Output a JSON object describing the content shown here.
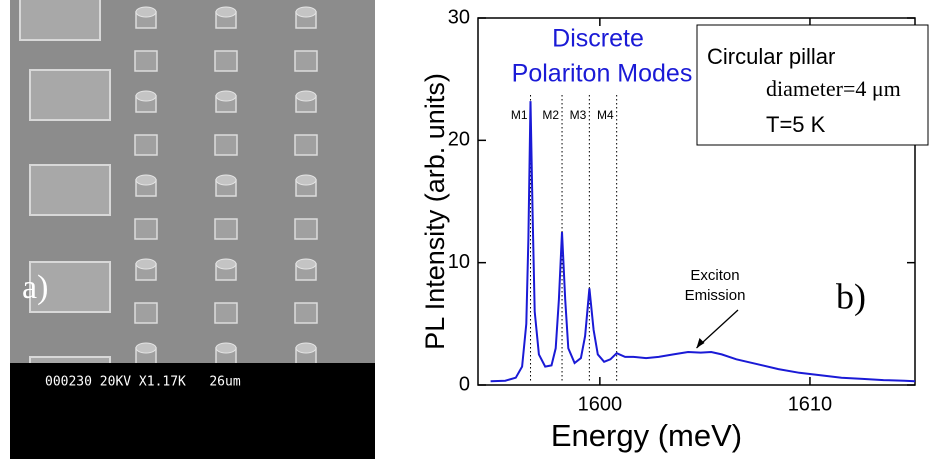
{
  "image_panel": {
    "label": "a)",
    "caption": "000230 20KV X1.17K   26um"
  },
  "chart_data": {
    "type": "line",
    "panel_label": "b)",
    "title_lines": [
      "Discrete",
      "Polariton Modes"
    ],
    "info_box": [
      "Circular pillar",
      "diameter=4 μm",
      "T=5 K"
    ],
    "xlabel": "Energy (meV)",
    "ylabel": "PL Intensity (arb. units)",
    "color": "#1a1ad6",
    "x": [
      1594.8,
      1595.5,
      1596.0,
      1596.3,
      1596.5,
      1596.6,
      1596.7,
      1596.8,
      1596.9,
      1597.1,
      1597.4,
      1597.7,
      1597.9,
      1598.05,
      1598.2,
      1598.35,
      1598.5,
      1598.8,
      1599.1,
      1599.3,
      1599.5,
      1599.7,
      1599.9,
      1600.2,
      1600.5,
      1600.8,
      1601.2,
      1601.6,
      1602.2,
      1602.8,
      1603.5,
      1604.2,
      1604.8,
      1605.3,
      1605.8,
      1606.5,
      1607.5,
      1608.5,
      1609.5,
      1610.5,
      1611.5,
      1612.5,
      1613.5,
      1614.5,
      1615
    ],
    "values": [
      0.3,
      0.35,
      0.6,
      1.5,
      5,
      12,
      23.2,
      14,
      6,
      2.5,
      1.5,
      1.6,
      3,
      7,
      12.5,
      7,
      3,
      1.8,
      2.2,
      4,
      7.9,
      4.5,
      2.5,
      1.9,
      2.1,
      2.6,
      2.3,
      2.3,
      2.2,
      2.3,
      2.5,
      2.7,
      2.65,
      2.7,
      2.5,
      2.1,
      1.7,
      1.3,
      1.0,
      0.8,
      0.6,
      0.5,
      0.4,
      0.35,
      0.3
    ],
    "mode_lines": [
      {
        "label": "M1",
        "x": 1596.7
      },
      {
        "label": "M2",
        "x": 1598.2
      },
      {
        "label": "M3",
        "x": 1599.5
      },
      {
        "label": "M4",
        "x": 1600.8
      }
    ],
    "annotation": {
      "lines": [
        "Exciton",
        "Emission"
      ],
      "x": 1604.6,
      "y": 2.7
    },
    "xlim": [
      1594.2,
      1615
    ],
    "ylim": [
      0,
      30
    ],
    "xticks": [
      1600,
      1610
    ],
    "yticks": [
      0,
      10,
      20,
      30
    ]
  }
}
